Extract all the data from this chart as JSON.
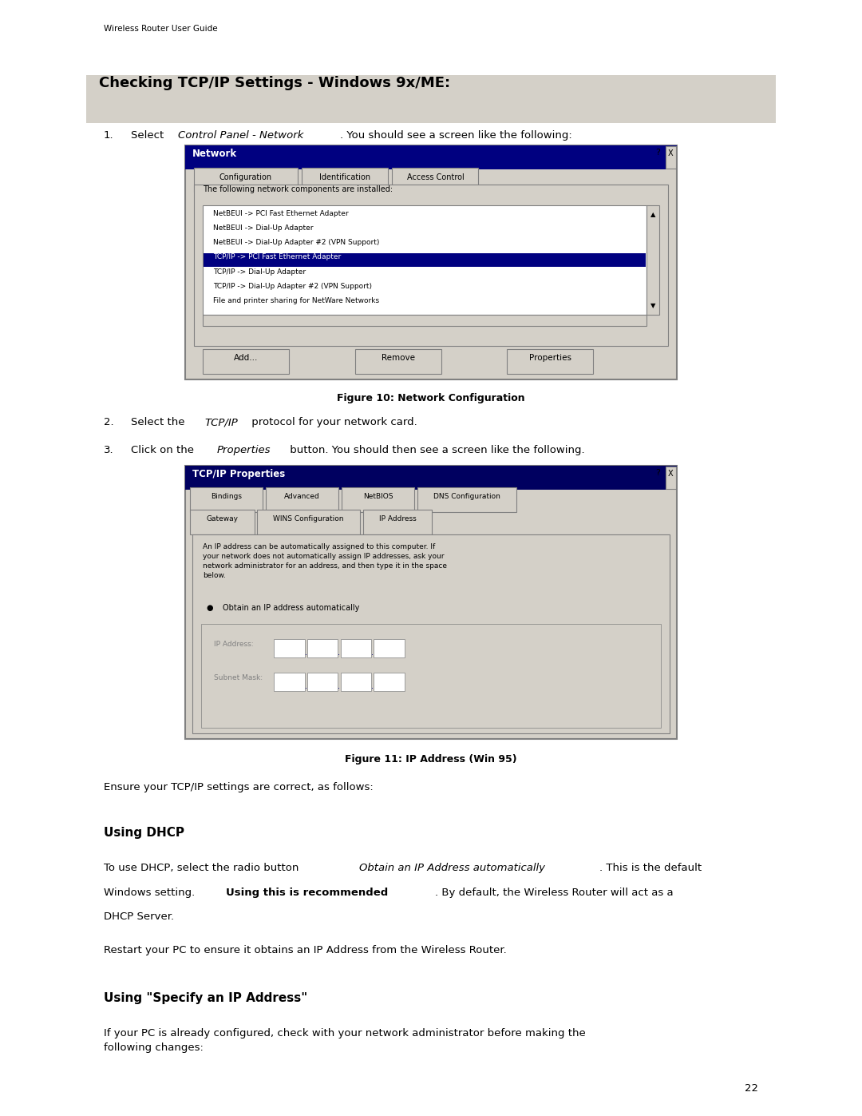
{
  "page_width": 10.8,
  "page_height": 13.97,
  "bg_color": "#ffffff",
  "header_text": "Wireless Router User Guide",
  "section_title": "Checking TCP/IP Settings - Windows 9x/ME:",
  "section_title_bg": "#d4d0c8",
  "item1_text": "Select ",
  "item1_italic": "Control Panel - Network",
  "item1_rest": ". You should see a screen like the following:",
  "fig10_caption": "Figure 10: Network Configuration",
  "item2_text": "Select the ",
  "item2_italic": "TCP/IP",
  "item2_rest": " protocol for your network card.",
  "item3_text": "Click on the ",
  "item3_italic": "Properties",
  "item3_rest": " button. You should then see a screen like the following.",
  "fig11_caption": "Figure 11: IP Address (Win 95)",
  "ensure_text": "Ensure your TCP/IP settings are correct, as follows:",
  "dhcp_heading": "Using DHCP",
  "dhcp_para1_start": "To use DHCP, select the radio button ",
  "dhcp_para1_italic": "Obtain an IP Address automatically",
  "dhcp_para1_mid": ". This is the default\nWindows setting. ",
  "dhcp_para1_bold": "Using this is recommended",
  "dhcp_para1_end": ". By default, the Wireless Router will act as a\nDHCP Server.",
  "dhcp_para2": "Restart your PC to ensure it obtains an IP Address from the Wireless Router.",
  "specify_heading": "Using \"Specify an IP Address\"",
  "specify_para": "If your PC is already configured, check with your network administrator before making the\nfollowing changes:",
  "page_number": "22",
  "win_blue": "#000080",
  "win_gray": "#d4d0c8",
  "win_white": "#ffffff",
  "win_dark": "#808080",
  "selected_blue": "#000080",
  "selected_text": "#ffffff"
}
